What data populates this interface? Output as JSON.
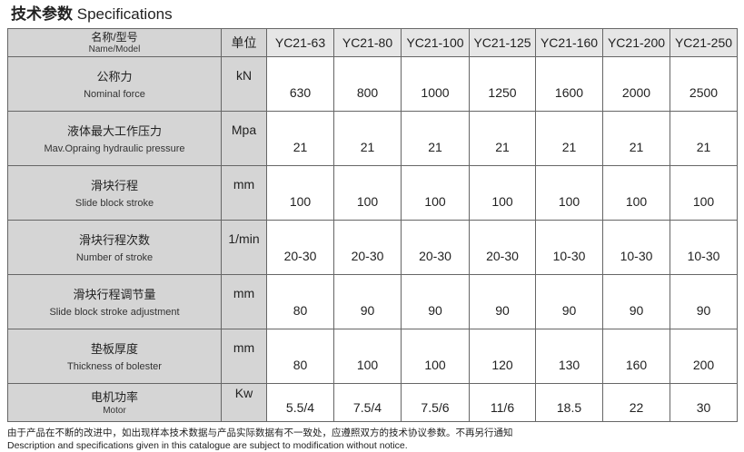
{
  "title": {
    "zh": "技术参数",
    "en": "Specifications"
  },
  "header": {
    "name_zh": "名称/型号",
    "name_en": "Name/Model",
    "unit": "单位",
    "models": [
      "YC21-63",
      "YC21-80",
      "YC21-100",
      "YC21-125",
      "YC21-160",
      "YC21-200",
      "YC21-250"
    ]
  },
  "rows": [
    {
      "zh": "公称力",
      "en": "Nominal force",
      "unit": "kN",
      "values": [
        "630",
        "800",
        "1000",
        "1250",
        "1600",
        "2000",
        "2500"
      ]
    },
    {
      "zh": "液体最大工作压力",
      "en": "Mav.Opraing hydraulic pressure",
      "unit": "Mpa",
      "values": [
        "21",
        "21",
        "21",
        "21",
        "21",
        "21",
        "21"
      ]
    },
    {
      "zh": "滑块行程",
      "en": "Slide block stroke",
      "unit": "mm",
      "values": [
        "100",
        "100",
        "100",
        "100",
        "100",
        "100",
        "100"
      ]
    },
    {
      "zh": "滑块行程次数",
      "en": "Number of stroke",
      "unit": "1/min",
      "values": [
        "20-30",
        "20-30",
        "20-30",
        "20-30",
        "10-30",
        "10-30",
        "10-30"
      ]
    },
    {
      "zh": "滑块行程调节量",
      "en": "Slide block stroke adjustment",
      "unit": "mm",
      "values": [
        "80",
        "90",
        "90",
        "90",
        "90",
        "90",
        "90"
      ]
    },
    {
      "zh": "垫板厚度",
      "en": "Thickness of bolester",
      "unit": "mm",
      "values": [
        "80",
        "100",
        "100",
        "120",
        "130",
        "160",
        "200"
      ]
    },
    {
      "zh": "电机功率",
      "en": "Motor",
      "unit": "Kw",
      "values": [
        "5.5/4",
        "7.5/4",
        "7.5/6",
        "11/6",
        "18.5",
        "22",
        "30"
      ]
    }
  ],
  "notes": {
    "zh": "由于产品在不断的改进中，如出现样本技术数据与产品实际数据有不一致处，应遵照双方的技术协议参数。不再另行通知",
    "en": "Description and specifications given in this catalogue are subject to modification without notice."
  }
}
